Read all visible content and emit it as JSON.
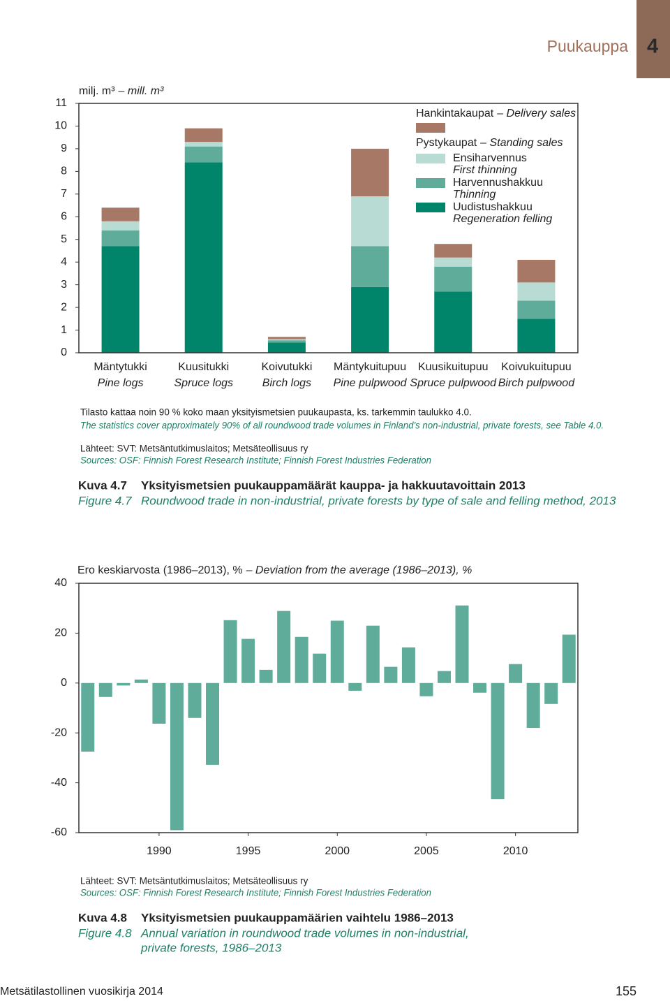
{
  "header": {
    "section": "Puukauppa",
    "chapter": "4"
  },
  "chart_data": [
    {
      "type": "bar",
      "stacked": true,
      "unit": "milj. m³",
      "unit_en": "– mill. m³",
      "categories": [
        "Mäntytukki",
        "Kuusitukki",
        "Koivutukki",
        "Mäntykuitupuu",
        "Kuusikuitupuu",
        "Koivukuitupuu"
      ],
      "categories_en": [
        "Pine logs",
        "Spruce logs",
        "Birch logs",
        "Pine pulpwood",
        "Spruce pulpwood",
        "Birch pulpwood"
      ],
      "series": [
        {
          "name": "Uudistushakkuu",
          "name_en": "Regeneration felling",
          "color": "#00856a",
          "values": [
            4.7,
            8.4,
            0.45,
            2.9,
            2.7,
            1.5
          ]
        },
        {
          "name": "Harvennushakkuu",
          "name_en": "Thinning",
          "color": "#5fac9a",
          "values": [
            0.7,
            0.7,
            0.1,
            1.8,
            1.1,
            0.8
          ]
        },
        {
          "name": "Ensiharvennus",
          "name_en": "First thinning",
          "color": "#b8dcd3",
          "values": [
            0.4,
            0.2,
            0.05,
            2.2,
            0.4,
            0.8
          ]
        },
        {
          "name": "Hankintakaupat",
          "name_en": "– Delivery sales",
          "color": "#a87866",
          "values": [
            0.6,
            0.6,
            0.1,
            2.1,
            0.6,
            1.0
          ]
        }
      ],
      "legend_group": {
        "name": "Pystykaupat",
        "name_en": "– Standing sales"
      },
      "ylim": [
        0,
        11
      ],
      "yticks": [
        0,
        1,
        2,
        3,
        4,
        5,
        6,
        7,
        8,
        9,
        10,
        11
      ],
      "grid": false,
      "notes": [
        "Tilasto kattaa noin 90 % koko maan yksityismetsien puukaupasta, ks. tarkemmin taulukko 4.0.",
        "The statistics cover approximately 90% of all roundwood trade volumes in Finland’s non-industrial, private forests, see Table 4.0.",
        "Lähteet: SVT: Metsäntutkimuslaitos; Metsäteollisuus ry",
        "Sources: OSF: Finnish Forest Research Institute; Finnish Forest Industries Federation"
      ],
      "caption": {
        "label": "Kuva 4.7",
        "title": [
          "Yksityismetsien puukauppamäärät kauppa- ja hakkuutavoittain 2013"
        ],
        "label_en": "Figure 4.7",
        "title_en": [
          "Roundwood trade in non-industrial, private forests by type of sale and felling method, 2013"
        ]
      }
    },
    {
      "type": "bar",
      "title": "Ero keskiarvosta (1986–2013), %",
      "title_en": "– Deviation from the average (1986–2013), %",
      "x": [
        1986,
        1987,
        1988,
        1989,
        1990,
        1991,
        1992,
        1993,
        1994,
        1995,
        1996,
        1997,
        1998,
        1999,
        2000,
        2001,
        2002,
        2003,
        2004,
        2005,
        2006,
        2007,
        2008,
        2009,
        2010,
        2011,
        2012,
        2013
      ],
      "values": [
        -27.5,
        -5.6,
        -1,
        1.4,
        -16.3,
        -59,
        -14,
        -32.8,
        25.2,
        17.7,
        5.3,
        28.9,
        18.5,
        11.8,
        25,
        -3.1,
        23,
        6.5,
        14.3,
        -5.3,
        4.8,
        31.1,
        -3.9,
        -46.6,
        7.6,
        -18,
        -8.4,
        19.4
      ],
      "color": "#5fac9a",
      "xlim": [
        1985.5,
        2013.5
      ],
      "xticks": [
        1990,
        1995,
        2000,
        2005,
        2010
      ],
      "ylim": [
        -60,
        40
      ],
      "yticks": [
        -60,
        -40,
        -20,
        0,
        20,
        40
      ],
      "grid": false,
      "notes": [
        "Lähteet: SVT: Metsäntutkimuslaitos; Metsäteollisuus ry",
        "Sources: OSF: Finnish Forest Research Institute; Finnish Forest Industries Federation"
      ],
      "caption": {
        "label": "Kuva 4.8",
        "title": [
          "Yksityismetsien puukauppamäärien vaihtelu 1986–2013"
        ],
        "label_en": "Figure 4.8",
        "title_en": [
          "Annual variation in roundwood trade volumes in non-industrial,",
          "private forests, 1986–2013"
        ]
      }
    }
  ],
  "footer": {
    "publication": "Metsätilastollinen vuosikirja 2014",
    "page": "155"
  }
}
